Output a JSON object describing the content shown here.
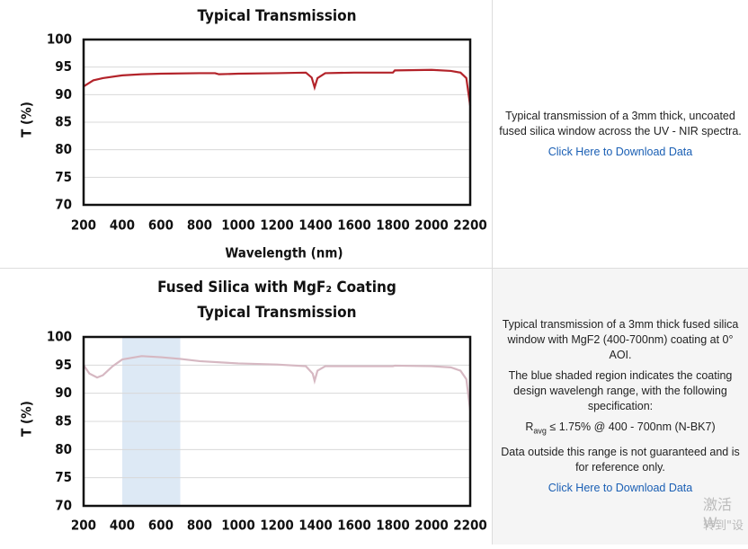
{
  "chart_data": [
    {
      "type": "line",
      "title": [
        "Typical Transmission"
      ],
      "x_label": "Wavelength (nm)",
      "y_label": "T (%)",
      "x": [
        200,
        250,
        300,
        400,
        500,
        600,
        800,
        880,
        900,
        1000,
        1200,
        1350,
        1380,
        1395,
        1410,
        1450,
        1600,
        1800,
        1810,
        2000,
        2100,
        2150,
        2180,
        2200
      ],
      "series": [
        {
          "color": "#b3232a",
          "values": [
            91.5,
            92.6,
            93.0,
            93.5,
            93.7,
            93.8,
            93.9,
            93.9,
            93.7,
            93.8,
            93.9,
            94.0,
            93.1,
            91.3,
            93.0,
            93.9,
            94.0,
            94.0,
            94.4,
            94.5,
            94.3,
            94.0,
            93.0,
            88.0
          ]
        }
      ],
      "xlim": [
        200,
        2200
      ],
      "xticks": [
        200,
        400,
        600,
        800,
        1000,
        1200,
        1400,
        1600,
        1800,
        2000,
        2200
      ],
      "ylim": [
        70,
        100
      ],
      "yticks": [
        70,
        75,
        80,
        85,
        90,
        95,
        100
      ],
      "grid": true
    },
    {
      "type": "line",
      "title": [
        "Fused Silica with MgF₂ Coating",
        "Typical Transmission"
      ],
      "y_label": "T (%)",
      "x": [
        200,
        230,
        270,
        300,
        350,
        400,
        500,
        600,
        700,
        800,
        1000,
        1200,
        1350,
        1385,
        1395,
        1410,
        1450,
        1600,
        1800,
        1810,
        2000,
        2100,
        2150,
        2180,
        2200
      ],
      "series": [
        {
          "color": "#d6b8c2",
          "values": [
            95.0,
            93.5,
            92.8,
            93.2,
            94.8,
            96.0,
            96.6,
            96.4,
            96.1,
            95.7,
            95.3,
            95.1,
            94.8,
            93.5,
            92.2,
            94.0,
            94.8,
            94.8,
            94.8,
            94.9,
            94.8,
            94.6,
            94.0,
            92.5,
            87.0
          ]
        }
      ],
      "shaded_range": [
        400,
        700
      ],
      "shade_color": "#dde9f5",
      "xlim": [
        200,
        2200
      ],
      "xticks": [
        200,
        400,
        600,
        800,
        1000,
        1200,
        1400,
        1600,
        1800,
        2000,
        2200
      ],
      "ylim": [
        70,
        100
      ],
      "yticks": [
        70,
        75,
        80,
        85,
        90,
        95,
        100
      ],
      "grid": true
    }
  ],
  "panels": [
    {
      "paragraphs": [
        "Typical transmission of a 3mm thick, uncoated fused silica window across the UV - NIR spectra."
      ],
      "link": "Click Here to Download Data"
    },
    {
      "paragraphs": [
        "Typical transmission of a 3mm thick fused silica window with MgF2 (400-700nm) coating at 0° AOI.",
        "The blue shaded region indicates the coating design wavelengh range, with the following specification:"
      ],
      "spec": [
        "R",
        "avg",
        " ≤ 1.75% @ 400 - 700nm (N-BK7)"
      ],
      "note": "Data outside this range is not guaranteed and is for reference only.",
      "link": "Click Here to Download Data"
    }
  ],
  "watermark": [
    "激活 W",
    "转到\"设"
  ]
}
